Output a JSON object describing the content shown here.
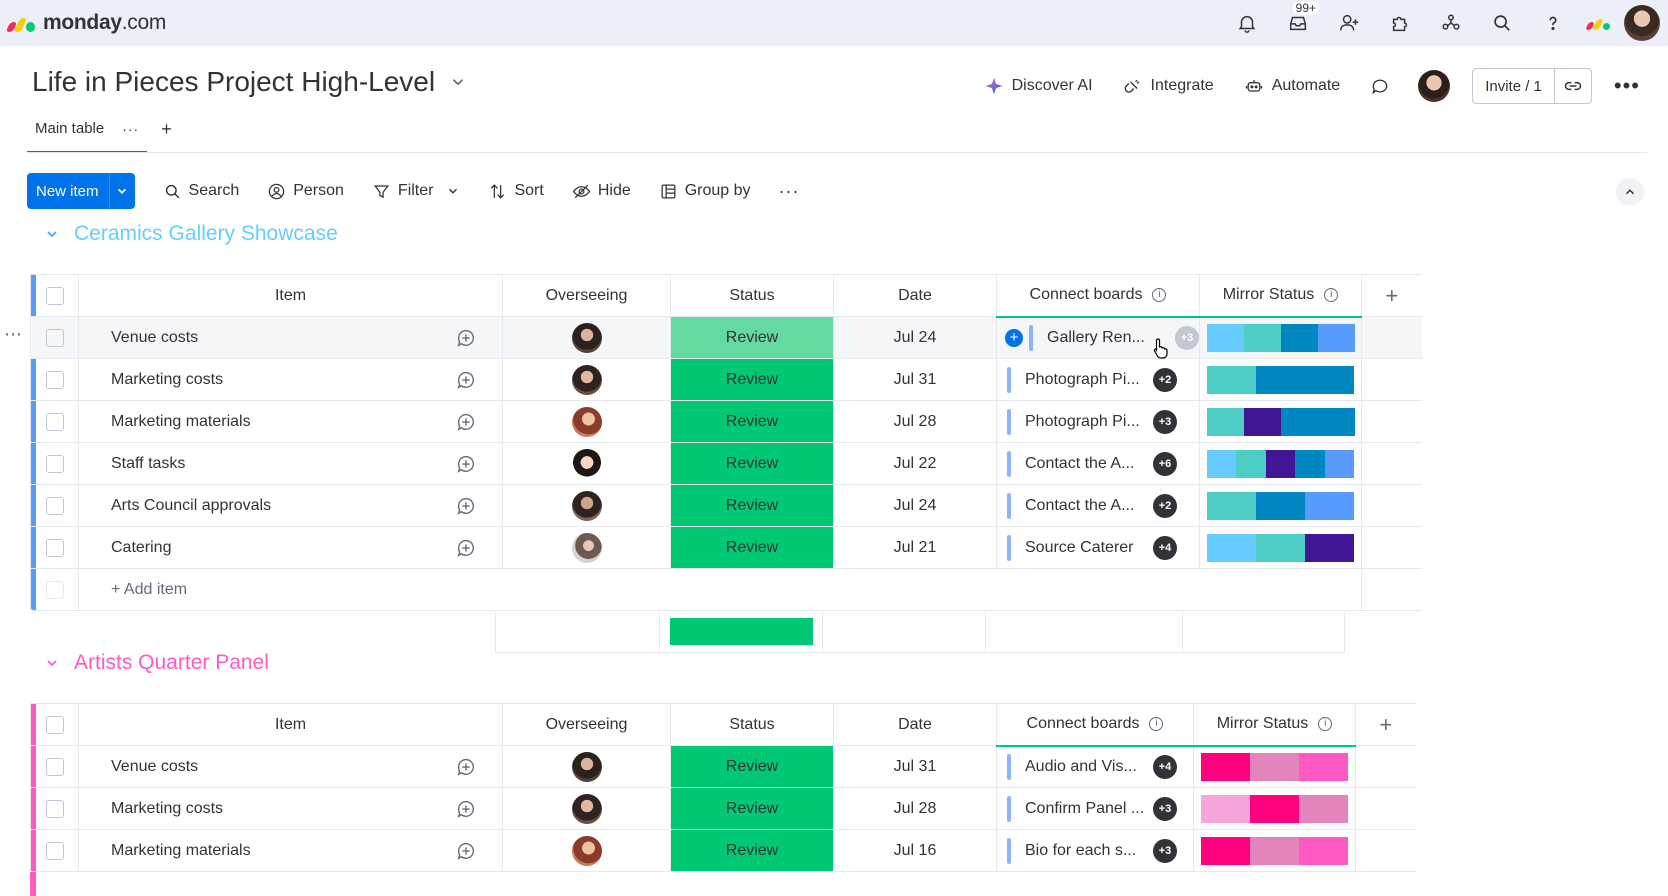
{
  "app": {
    "logo_text_bold": "monday",
    "logo_text": ".com",
    "notifications_badge": "99+"
  },
  "board": {
    "title": "Life in Pieces Project High-Level"
  },
  "header_actions": {
    "discover_ai": "Discover AI",
    "integrate": "Integrate",
    "automate": "Automate",
    "invite": "Invite / 1"
  },
  "tabs": {
    "main": "Main table",
    "main_more": "···",
    "add": "+"
  },
  "toolbar": {
    "new_item": "New item",
    "search": "Search",
    "person": "Person",
    "filter": "Filter",
    "sort": "Sort",
    "hide": "Hide",
    "group_by": "Group by",
    "more": "···"
  },
  "columns": {
    "item": "Item",
    "overseeing": "Overseeing",
    "status": "Status",
    "date": "Date",
    "connect_boards": "Connect boards",
    "mirror_status": "Mirror Status",
    "add": "+"
  },
  "colors": {
    "group1": "#579bfc",
    "group1_title": "#66ccff",
    "group2": "#ff5ac4",
    "status_review": "#00c875",
    "primary": "#0073ea"
  },
  "groups": [
    {
      "title": "Ceramics Gallery Showcase",
      "add_item": "+ Add item",
      "rows": [
        {
          "item": "Venue costs",
          "status": "Review",
          "date": "Jul 24",
          "connect": "Gallery Ren...",
          "badge": "+3",
          "mirror": [
            "#66ccff",
            "#4eccc6",
            "#0086c0",
            "#579bfc"
          ]
        },
        {
          "item": "Marketing costs",
          "status": "Review",
          "date": "Jul 31",
          "connect": "Photograph Pi...",
          "badge": "+2",
          "mirror": [
            "#4eccc6",
            "#0086c0",
            "#0086c0"
          ]
        },
        {
          "item": "Marketing materials",
          "status": "Review",
          "date": "Jul 28",
          "connect": "Photograph Pi...",
          "badge": "+3",
          "mirror": [
            "#4eccc6",
            "#401694",
            "#0086c0",
            "#0086c0"
          ]
        },
        {
          "item": "Staff tasks",
          "status": "Review",
          "date": "Jul 22",
          "connect": "Contact the A...",
          "badge": "+6",
          "mirror": [
            "#66ccff",
            "#4eccc6",
            "#401694",
            "#0086c0",
            "#579bfc"
          ]
        },
        {
          "item": "Arts Council approvals",
          "status": "Review",
          "date": "Jul 24",
          "connect": "Contact the A...",
          "badge": "+2",
          "mirror": [
            "#4eccc6",
            "#0086c0",
            "#579bfc"
          ]
        },
        {
          "item": "Catering",
          "status": "Review",
          "date": "Jul 21",
          "connect": "Source Caterer",
          "badge": "+4",
          "mirror": [
            "#66ccff",
            "#4eccc6",
            "#401694"
          ]
        }
      ]
    },
    {
      "title": "Artists Quarter Panel",
      "rows": [
        {
          "item": "Venue costs",
          "status": "Review",
          "date": "Jul 31",
          "connect": "Audio and Vis...",
          "badge": "+4",
          "mirror": [
            "#ff007f",
            "#e484bd",
            "#ff5ac4"
          ]
        },
        {
          "item": "Marketing costs",
          "status": "Review",
          "date": "Jul 28",
          "connect": "Confirm Panel ...",
          "badge": "+3",
          "mirror": [
            "#f8a5dc",
            "#ff007f",
            "#e484bd"
          ]
        },
        {
          "item": "Marketing materials",
          "status": "Review",
          "date": "Jul 16",
          "connect": "Bio for each s...",
          "badge": "+3",
          "mirror": [
            "#ff007f",
            "#e484bd",
            "#ff5ac4"
          ]
        }
      ]
    }
  ]
}
